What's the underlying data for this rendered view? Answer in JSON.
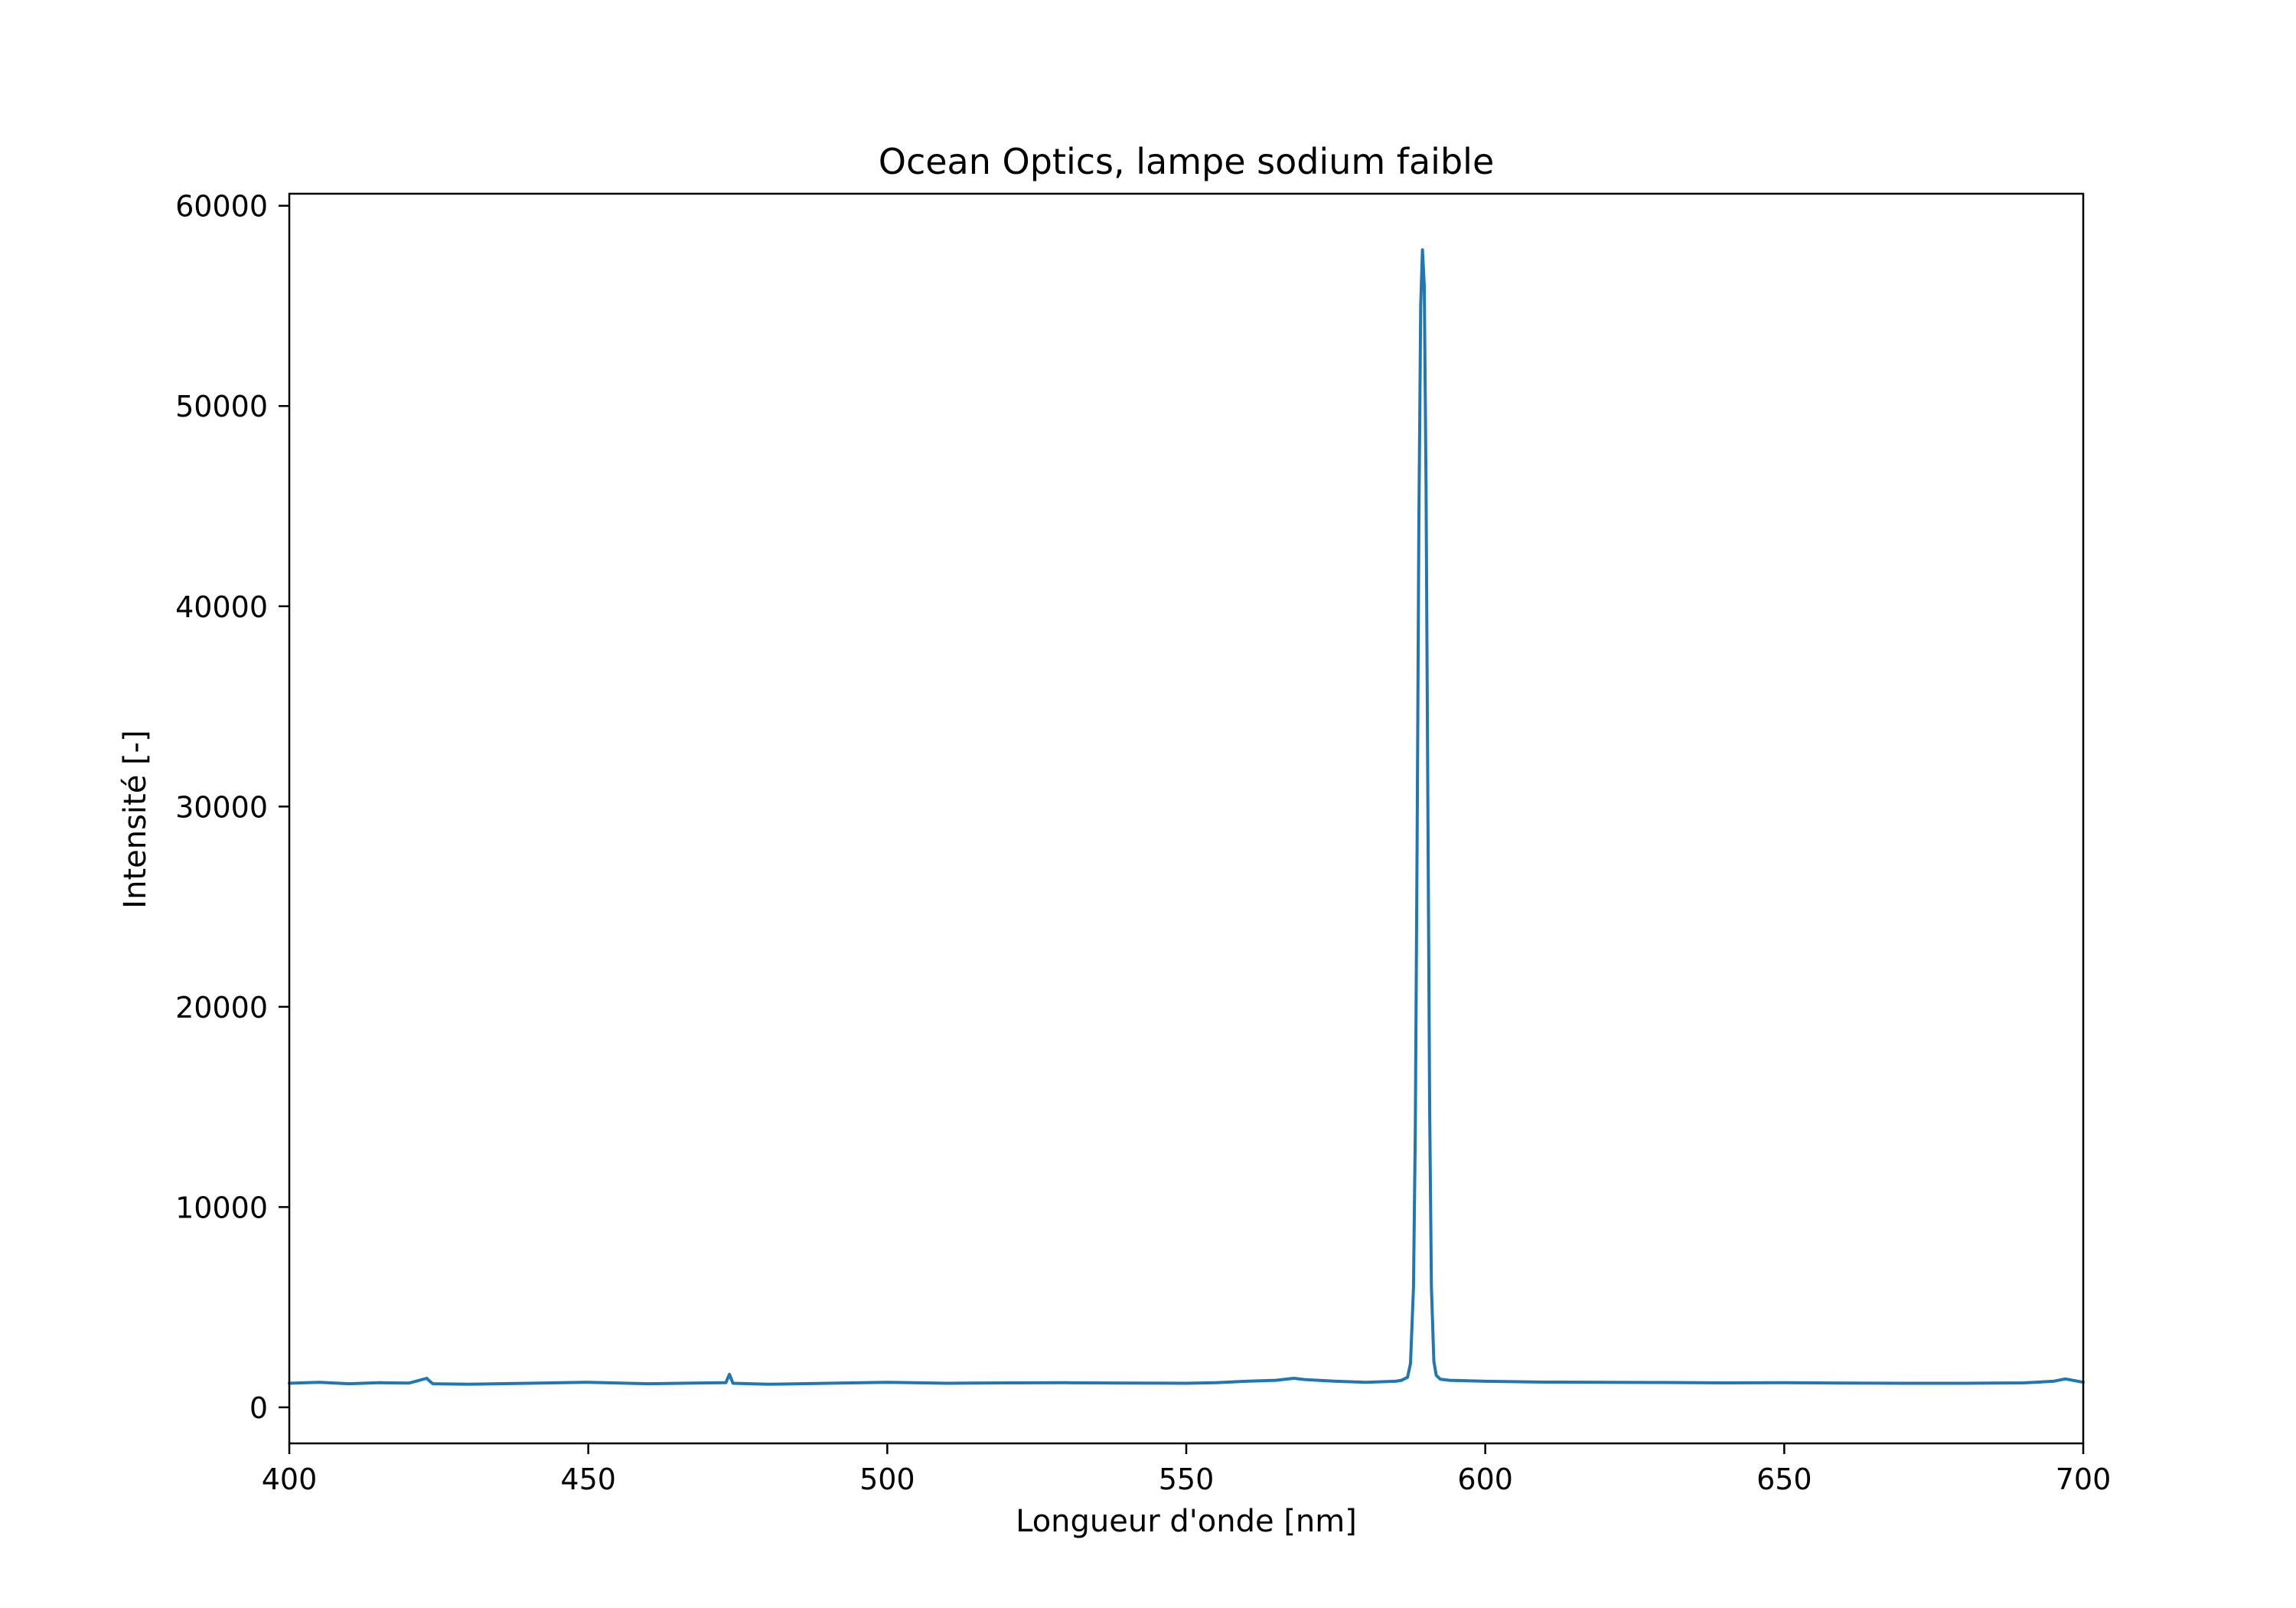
{
  "chart_data": {
    "type": "line",
    "title": "Ocean Optics, lampe sodium faible",
    "xlabel": "Longueur d'onde [nm]",
    "ylabel": "Intensité [-]",
    "xlim": [
      400,
      700
    ],
    "ylim": [
      -1800,
      60600
    ],
    "xticks": [
      400,
      450,
      500,
      550,
      600,
      650,
      700
    ],
    "yticks": [
      0,
      10000,
      20000,
      30000,
      40000,
      50000,
      60000
    ],
    "grid": false,
    "legend": "none",
    "series": [
      {
        "color": "#1f77b4",
        "x": [
          400,
          405,
          410,
          415,
          420,
          423,
          423.5,
          424,
          430,
          440,
          450,
          460,
          470,
          473,
          473.6,
          474.2,
          480,
          490,
          500,
          510,
          520,
          530,
          540,
          550,
          555,
          560,
          565,
          568,
          570,
          575,
          580,
          585,
          586,
          587,
          587.5,
          588,
          588.3,
          588.6,
          588.9,
          589.2,
          589.5,
          589.8,
          590.1,
          590.4,
          590.7,
          591,
          591.4,
          591.8,
          592.5,
          594,
          600,
          610,
          620,
          630,
          640,
          650,
          660,
          670,
          680,
          690,
          695,
          697,
          700
        ],
        "y": [
          1200,
          1250,
          1180,
          1230,
          1210,
          1450,
          1300,
          1180,
          1150,
          1200,
          1250,
          1180,
          1220,
          1230,
          1650,
          1200,
          1150,
          1200,
          1250,
          1200,
          1220,
          1230,
          1210,
          1200,
          1230,
          1300,
          1350,
          1450,
          1380,
          1300,
          1250,
          1300,
          1350,
          1500,
          2200,
          6000,
          14000,
          28000,
          44000,
          55000,
          57800,
          56000,
          46000,
          30000,
          15000,
          6000,
          2300,
          1600,
          1400,
          1350,
          1300,
          1260,
          1250,
          1240,
          1220,
          1230,
          1210,
          1200,
          1200,
          1220,
          1300,
          1420,
          1250
        ]
      }
    ]
  }
}
